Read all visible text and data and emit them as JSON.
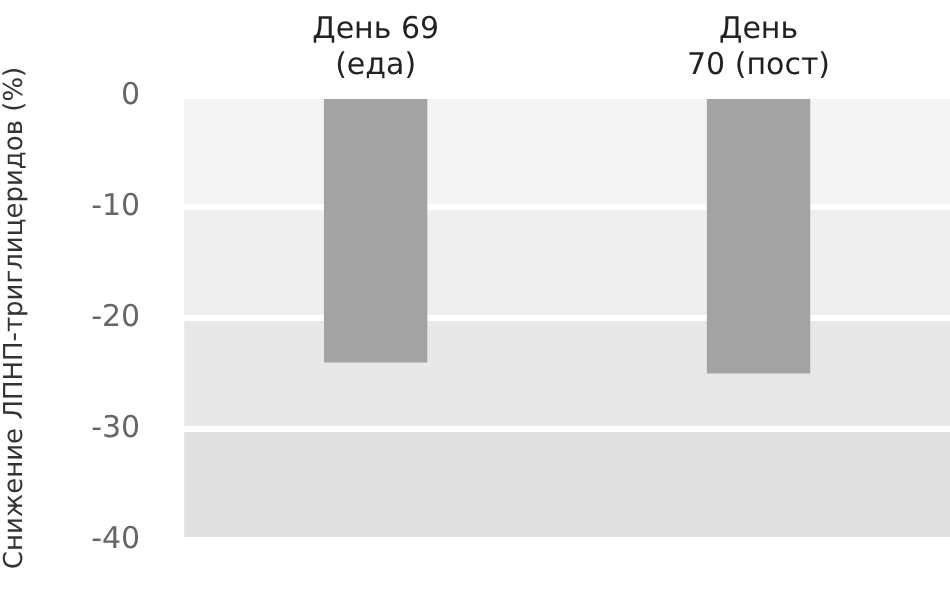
{
  "chart_data": {
    "type": "bar",
    "ylabel": "Снижение ЛПНП-триглицеридов (%)",
    "categories": [
      "День 69\n(еда)",
      "День\n70 (пост)"
    ],
    "values": [
      -24,
      -25
    ],
    "color": "#a3a3a3",
    "ylim": [
      -40,
      0
    ],
    "yticks": [
      0,
      -10,
      -20,
      -30,
      -40
    ],
    "grid": "y",
    "bands": [
      {
        "axis": "y",
        "from": 0,
        "to": -10,
        "color": "#f4f4f4"
      },
      {
        "axis": "y",
        "from": -10,
        "to": -20,
        "color": "#efefef"
      },
      {
        "axis": "y",
        "from": -20,
        "to": -30,
        "color": "#e8e8e8"
      },
      {
        "axis": "y",
        "from": -30,
        "to": -40,
        "color": "#e0e0e0"
      }
    ]
  }
}
